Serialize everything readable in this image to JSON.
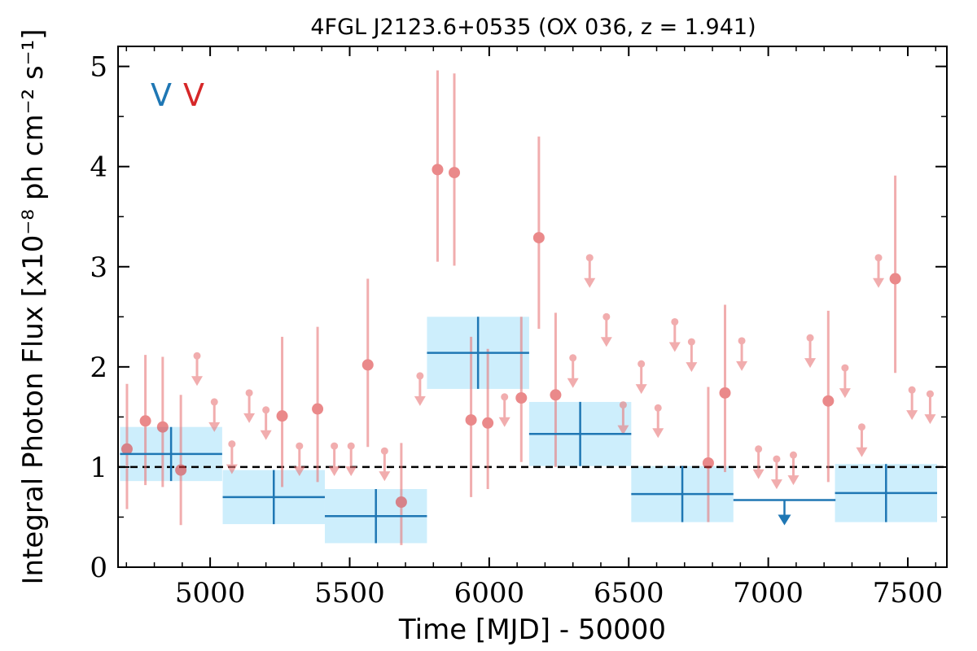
{
  "chart_data": {
    "type": "scatter",
    "title": "4FGL J2123.6+0535 (OX 036, z = 1.941)",
    "xlabel": "Time [MJD] - 50000",
    "ylabel": "Integral Photon Flux [x10⁻⁸ ph cm⁻² s⁻¹]",
    "xlim": [
      4670,
      7640
    ],
    "ylim": [
      0,
      5.2
    ],
    "x_ticks": [
      5000,
      5500,
      6000,
      6500,
      7000,
      7500
    ],
    "y_ticks": [
      0,
      1,
      2,
      3,
      4,
      5
    ],
    "grid": false,
    "reference_line": {
      "y": 1.0,
      "style": "dashed",
      "color": "#000000"
    },
    "legend": {
      "placement": "top-left",
      "entries": [
        {
          "label": "V",
          "color": "#1f77b4"
        },
        {
          "label": "V",
          "color": "#d62728"
        }
      ]
    },
    "series": [
      {
        "color": "#1f77b4",
        "band_color": "#cdeefc",
        "points": [
          {
            "x": 4860,
            "xerr": 183,
            "y": 1.13,
            "yerr": 0.27
          },
          {
            "x": 5228,
            "xerr": 183,
            "y": 0.7,
            "yerr": 0.27
          },
          {
            "x": 5594,
            "xerr": 183,
            "y": 0.51,
            "yerr": 0.27
          },
          {
            "x": 5960,
            "xerr": 183,
            "y": 2.14,
            "yerr": 0.36
          },
          {
            "x": 6326,
            "xerr": 183,
            "y": 1.33,
            "yerr": 0.32
          },
          {
            "x": 6692,
            "xerr": 183,
            "y": 0.73,
            "yerr": 0.28
          },
          {
            "x": 7058,
            "xerr": 183,
            "y": 0.67,
            "upper_limit": true
          },
          {
            "x": 7422,
            "xerr": 183,
            "y": 0.74,
            "yerr": 0.29
          }
        ]
      },
      {
        "color": "#e8787a",
        "points": [
          {
            "x": 4702,
            "y": 1.18,
            "lo": 0.58,
            "hi": 1.83
          },
          {
            "x": 4768,
            "y": 1.46,
            "lo": 0.82,
            "hi": 2.12
          },
          {
            "x": 4830,
            "y": 1.4,
            "lo": 0.8,
            "hi": 2.1
          },
          {
            "x": 4895,
            "y": 0.97,
            "lo": 0.42,
            "hi": 1.72
          },
          {
            "x": 4953,
            "y": 2.11,
            "upper_limit": true
          },
          {
            "x": 5015,
            "y": 1.65,
            "upper_limit": true
          },
          {
            "x": 5078,
            "y": 1.23,
            "upper_limit": true
          },
          {
            "x": 5140,
            "y": 1.74,
            "upper_limit": true
          },
          {
            "x": 5200,
            "y": 1.57,
            "upper_limit": true
          },
          {
            "x": 5258,
            "y": 1.51,
            "lo": 0.8,
            "hi": 2.3
          },
          {
            "x": 5320,
            "y": 1.21,
            "upper_limit": true
          },
          {
            "x": 5385,
            "y": 1.58,
            "lo": 0.85,
            "hi": 2.4
          },
          {
            "x": 5445,
            "y": 1.21,
            "upper_limit": true
          },
          {
            "x": 5505,
            "y": 1.21,
            "upper_limit": true
          },
          {
            "x": 5565,
            "y": 2.02,
            "lo": 1.2,
            "hi": 2.88
          },
          {
            "x": 5625,
            "y": 1.16,
            "upper_limit": true
          },
          {
            "x": 5685,
            "y": 0.65,
            "lo": 0.22,
            "hi": 1.24
          },
          {
            "x": 5752,
            "y": 1.91,
            "upper_limit": true
          },
          {
            "x": 5815,
            "y": 3.97,
            "lo": 3.05,
            "hi": 4.96
          },
          {
            "x": 5875,
            "y": 3.94,
            "lo": 3.01,
            "hi": 4.93
          },
          {
            "x": 5935,
            "y": 1.47,
            "lo": 0.7,
            "hi": 2.3
          },
          {
            "x": 5995,
            "y": 1.44,
            "lo": 0.78,
            "hi": 2.18
          },
          {
            "x": 6055,
            "y": 1.7,
            "upper_limit": true
          },
          {
            "x": 6115,
            "y": 1.69,
            "lo": 1.05,
            "hi": 2.5
          },
          {
            "x": 6178,
            "y": 3.29,
            "lo": 2.38,
            "hi": 4.3
          },
          {
            "x": 6238,
            "y": 1.72,
            "lo": 1.0,
            "hi": 2.54
          },
          {
            "x": 6300,
            "y": 2.09,
            "upper_limit": true
          },
          {
            "x": 6360,
            "y": 3.09,
            "upper_limit": true
          },
          {
            "x": 6420,
            "y": 2.5,
            "upper_limit": true
          },
          {
            "x": 6480,
            "y": 1.62,
            "upper_limit": true
          },
          {
            "x": 6545,
            "y": 2.03,
            "upper_limit": true
          },
          {
            "x": 6605,
            "y": 1.59,
            "upper_limit": true
          },
          {
            "x": 6665,
            "y": 2.45,
            "upper_limit": true
          },
          {
            "x": 6725,
            "y": 2.25,
            "upper_limit": true
          },
          {
            "x": 6785,
            "y": 1.04,
            "lo": 0.45,
            "hi": 1.8
          },
          {
            "x": 6845,
            "y": 1.74,
            "lo": 0.95,
            "hi": 2.62
          },
          {
            "x": 6905,
            "y": 2.26,
            "upper_limit": true
          },
          {
            "x": 6965,
            "y": 1.18,
            "upper_limit": true
          },
          {
            "x": 7030,
            "y": 1.08,
            "upper_limit": true
          },
          {
            "x": 7090,
            "y": 1.12,
            "upper_limit": true
          },
          {
            "x": 7150,
            "y": 2.29,
            "upper_limit": true
          },
          {
            "x": 7215,
            "y": 1.66,
            "lo": 0.85,
            "hi": 2.56
          },
          {
            "x": 7275,
            "y": 1.99,
            "upper_limit": true
          },
          {
            "x": 7335,
            "y": 1.4,
            "upper_limit": true
          },
          {
            "x": 7395,
            "y": 3.09,
            "upper_limit": true
          },
          {
            "x": 7455,
            "y": 2.88,
            "lo": 1.94,
            "hi": 3.91
          },
          {
            "x": 7515,
            "y": 1.77,
            "upper_limit": true
          },
          {
            "x": 7580,
            "y": 1.73,
            "upper_limit": true
          }
        ]
      }
    ]
  }
}
